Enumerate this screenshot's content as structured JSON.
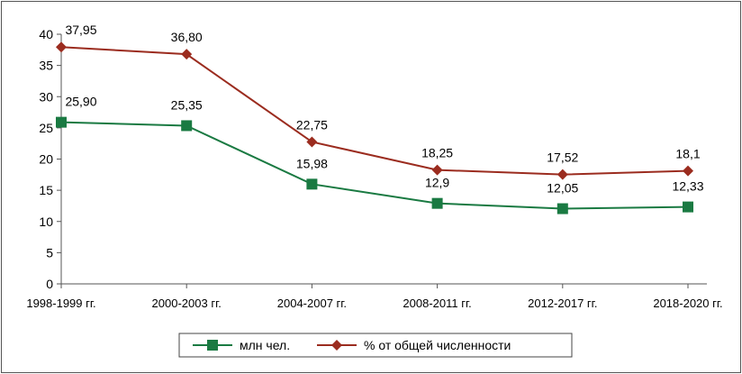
{
  "chart_data": {
    "type": "line",
    "categories": [
      "1998-1999 гг.",
      "2000-2003 гг.",
      "2004-2007 гг.",
      "2008-2011 гг.",
      "2012-2017 гг.",
      "2018-2020 гг."
    ],
    "ylim": [
      0,
      40
    ],
    "yticks": [
      0,
      5,
      10,
      15,
      20,
      25,
      30,
      35,
      40
    ],
    "grid": false,
    "legend_position": "bottom",
    "series": [
      {
        "name": "млн чел.",
        "values": [
          25.9,
          25.35,
          15.98,
          12.9,
          12.05,
          12.33
        ],
        "labels": [
          "25,90",
          "25,35",
          "15,98",
          "12,9",
          "12,05",
          "12,33"
        ],
        "color": "#1a7a42",
        "marker": "square"
      },
      {
        "name": "% от общей численности",
        "values": [
          37.95,
          36.8,
          22.75,
          18.25,
          17.52,
          18.1
        ],
        "labels": [
          "37,95",
          "36,80",
          "22,75",
          "18,25",
          "17,52",
          "18,1"
        ],
        "color": "#9b2c1f",
        "marker": "diamond"
      }
    ]
  }
}
